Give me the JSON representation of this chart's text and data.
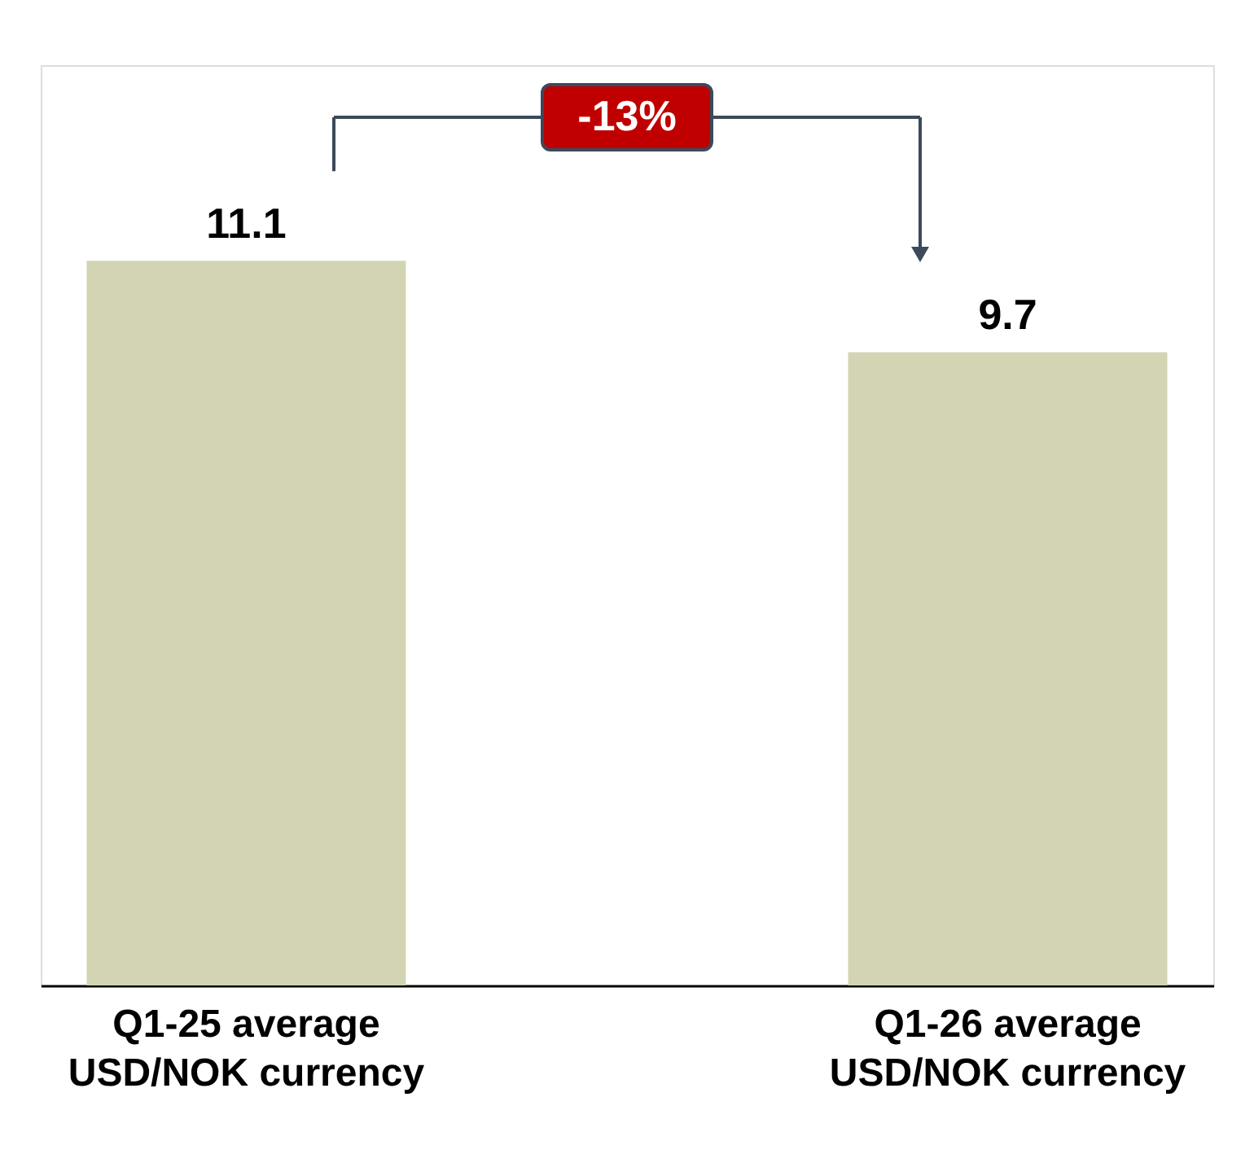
{
  "chart_data": {
    "type": "bar",
    "categories": [
      "Q1-25 average\nUSD/NOK currency",
      "Q1-26 average\nUSD/NOK currency"
    ],
    "values": [
      11.1,
      9.7
    ],
    "color": "#d3d4b3",
    "data_labels": true,
    "tick_labels": "x",
    "grid": false,
    "annotations": [
      "-13%"
    ]
  }
}
